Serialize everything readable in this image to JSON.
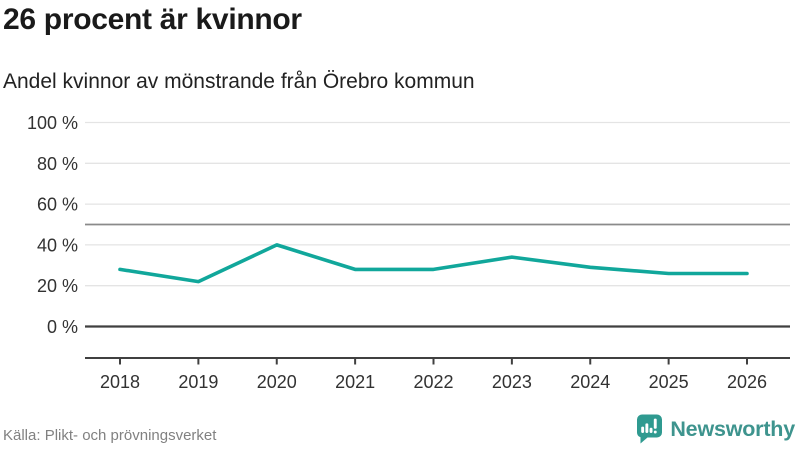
{
  "header": {
    "title": "26 procent är kvinnor",
    "subtitle": "Andel kvinnor av mönstrande från Örebro kommun"
  },
  "chart_data": {
    "type": "line",
    "categories": [
      "2018",
      "2019",
      "2020",
      "2021",
      "2022",
      "2023",
      "2024",
      "2025",
      "2026"
    ],
    "values": [
      28,
      22,
      40,
      28,
      28,
      34,
      29,
      26,
      26
    ],
    "title": "26 procent är kvinnor",
    "subtitle": "Andel kvinnor av mönstrande från Örebro kommun",
    "xlabel": "",
    "ylabel": "",
    "unit": "%",
    "ylim": [
      0,
      100
    ],
    "y_ticks": [
      0,
      20,
      40,
      60,
      80,
      100
    ],
    "y_tick_suffix": " %",
    "grid": true,
    "gridline_values": [
      20,
      40,
      60,
      80,
      100
    ],
    "reference_lines": [
      {
        "value": 50,
        "style": "medium-gray"
      },
      {
        "value": 0,
        "style": "dark-baseline"
      }
    ],
    "legend": "none",
    "colors": {
      "line": "#11a79b",
      "grid": "#e4e4e4",
      "reference": "#8a8a8a",
      "axis": "#404040",
      "tick_label": "#323232"
    }
  },
  "footer": {
    "source": "Källa: Plikt- och prövningsverket",
    "brand": "Newsworthy",
    "brand_wordmark_color": "#3e948e",
    "brand_icon_color": "#2f9a90"
  }
}
